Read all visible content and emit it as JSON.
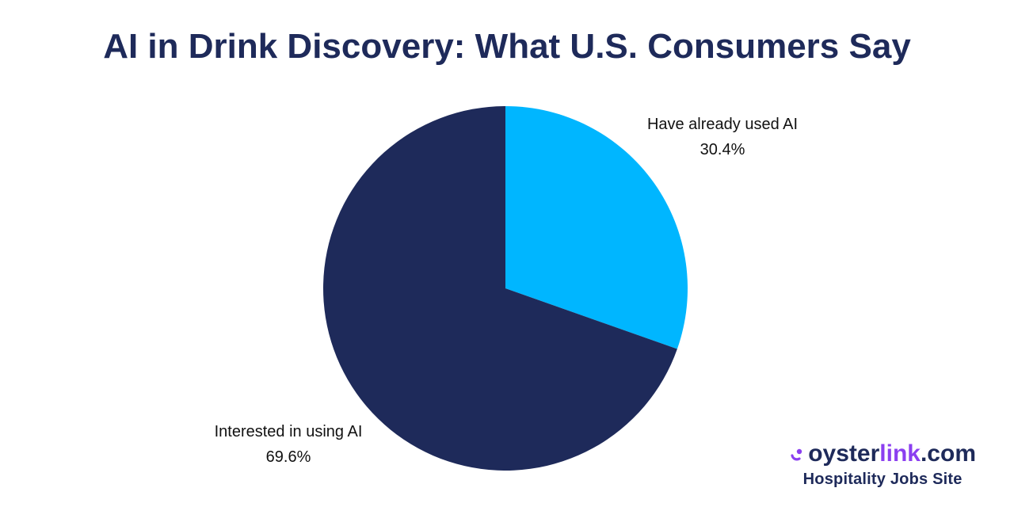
{
  "chart_data": {
    "type": "pie",
    "title": "AI in Drink Discovery: What U.S. Consumers Say",
    "slices": [
      {
        "label": "Have already used AI",
        "value": 30.4,
        "display": "30.4%",
        "color": "#00b6ff"
      },
      {
        "label": "Interested in using AI",
        "value": 69.6,
        "display": "69.6%",
        "color": "#1e2a5a"
      }
    ],
    "start": "12 o'clock",
    "direction": "clockwise"
  },
  "logo": {
    "icon": "oysterlink-logo-icon",
    "part1": "oyster",
    "part2": "link",
    "part3": ".com",
    "tagline": "Hospitality Jobs Site",
    "colors": {
      "primary": "#1e2a5a",
      "accent": "#8b3ff0"
    }
  }
}
